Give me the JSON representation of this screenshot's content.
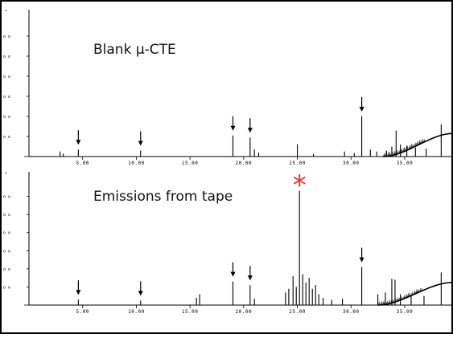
{
  "chart_data": [
    {
      "type": "line",
      "title": "Blank μ-CTE",
      "xlim": [
        0,
        39.5
      ],
      "ylim": [
        0,
        7
      ],
      "x_ticks": [
        5,
        10,
        15,
        20,
        25,
        30,
        35
      ],
      "x_tick_labels": [
        "5.00",
        "10.00",
        "15.00",
        "20.00",
        "25.00",
        "30.00",
        "35.00"
      ],
      "y_ticks": [
        1,
        2,
        3,
        4,
        5,
        6
      ],
      "y_tick_labels": [
        "o o",
        "o o",
        "o o",
        "o o",
        "o o",
        "o o"
      ],
      "baseline_drift": {
        "start": 33.0,
        "end": 39.5,
        "max": 1.15
      },
      "peaks": [
        {
          "x": 2.9,
          "y": 0.25
        },
        {
          "x": 3.2,
          "y": 0.15
        },
        {
          "x": 4.6,
          "y": 0.35
        },
        {
          "x": 10.4,
          "y": 0.3
        },
        {
          "x": 19.0,
          "y": 1.05
        },
        {
          "x": 20.6,
          "y": 0.95
        },
        {
          "x": 21.0,
          "y": 0.35
        },
        {
          "x": 21.4,
          "y": 0.2
        },
        {
          "x": 25.0,
          "y": 0.6
        },
        {
          "x": 26.5,
          "y": 0.12
        },
        {
          "x": 29.4,
          "y": 0.25
        },
        {
          "x": 30.3,
          "y": 0.18
        },
        {
          "x": 31.0,
          "y": 2.0
        },
        {
          "x": 31.8,
          "y": 0.35
        },
        {
          "x": 32.4,
          "y": 0.25
        },
        {
          "x": 33.3,
          "y": 0.3
        },
        {
          "x": 33.8,
          "y": 0.5
        },
        {
          "x": 34.2,
          "y": 1.3
        },
        {
          "x": 34.6,
          "y": 0.6
        },
        {
          "x": 35.2,
          "y": 0.55
        },
        {
          "x": 36.0,
          "y": 0.45
        },
        {
          "x": 37.0,
          "y": 0.4
        },
        {
          "x": 38.4,
          "y": 1.6
        }
      ],
      "arrows": [
        4.6,
        10.4,
        19.0,
        20.6,
        31.0
      ]
    },
    {
      "type": "line",
      "title": "Emissions from tape",
      "xlim": [
        0,
        39.5
      ],
      "ylim": [
        0,
        7
      ],
      "x_ticks": [
        5,
        10,
        15,
        20,
        25,
        30,
        35
      ],
      "x_tick_labels": [
        "5.00",
        "10.00",
        "15.00",
        "20.00",
        "25.00",
        "30.00",
        "35.00"
      ],
      "y_ticks": [
        1,
        2,
        3,
        4,
        5,
        6
      ],
      "y_tick_labels": [
        "o o",
        "o o",
        "o o",
        "o o",
        "o o",
        "o o"
      ],
      "baseline_drift": {
        "start": 32.5,
        "end": 39.5,
        "max": 1.25
      },
      "peaks": [
        {
          "x": 4.6,
          "y": 0.3
        },
        {
          "x": 10.4,
          "y": 0.25
        },
        {
          "x": 15.6,
          "y": 0.4
        },
        {
          "x": 15.9,
          "y": 0.6
        },
        {
          "x": 19.0,
          "y": 1.3
        },
        {
          "x": 20.6,
          "y": 1.1
        },
        {
          "x": 21.0,
          "y": 0.35
        },
        {
          "x": 23.9,
          "y": 0.7
        },
        {
          "x": 24.2,
          "y": 0.9
        },
        {
          "x": 24.6,
          "y": 1.6
        },
        {
          "x": 24.9,
          "y": 1.0
        },
        {
          "x": 25.2,
          "y": 6.3
        },
        {
          "x": 25.5,
          "y": 1.7
        },
        {
          "x": 25.8,
          "y": 1.25
        },
        {
          "x": 26.1,
          "y": 1.5
        },
        {
          "x": 26.4,
          "y": 0.9
        },
        {
          "x": 26.7,
          "y": 1.1
        },
        {
          "x": 27.0,
          "y": 0.6
        },
        {
          "x": 27.4,
          "y": 0.4
        },
        {
          "x": 28.2,
          "y": 0.3
        },
        {
          "x": 29.2,
          "y": 0.35
        },
        {
          "x": 31.0,
          "y": 2.1
        },
        {
          "x": 32.5,
          "y": 0.6
        },
        {
          "x": 33.2,
          "y": 0.7
        },
        {
          "x": 33.8,
          "y": 1.45
        },
        {
          "x": 34.1,
          "y": 1.4
        },
        {
          "x": 34.6,
          "y": 0.6
        },
        {
          "x": 35.6,
          "y": 0.5
        },
        {
          "x": 36.8,
          "y": 0.5
        },
        {
          "x": 38.4,
          "y": 1.8
        }
      ],
      "arrows": [
        4.6,
        10.4,
        19.0,
        20.6,
        31.0
      ],
      "marker": {
        "x": 25.2,
        "symbol": "*",
        "color": "#e8312f"
      }
    }
  ]
}
